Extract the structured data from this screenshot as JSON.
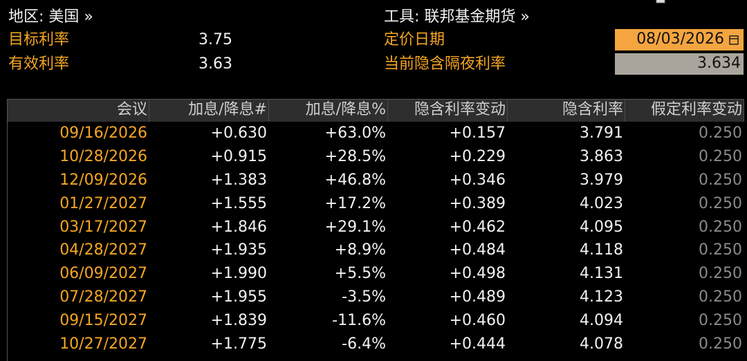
{
  "header": {
    "region": "地区: 美国 »",
    "instrument": "工具: 联邦基金期货 »",
    "target_rate_label": "目标利率",
    "target_rate": "3.75",
    "effective_rate_label": "有效利率",
    "effective_rate": "3.63",
    "pricing_date_label": "定价日期",
    "pricing_date": "08/03/2026",
    "implied_overnight_label": "当前隐含隔夜利率",
    "implied_overnight": "3.634"
  },
  "table": {
    "columns": [
      "会议",
      "加息/降息#",
      "加息/降息%",
      "隐含利率变动",
      "隐含利率",
      "假定利率变动"
    ],
    "rows": [
      [
        "09/16/2026",
        "+0.630",
        "+63.0%",
        "+0.157",
        "3.791",
        "0.250"
      ],
      [
        "10/28/2026",
        "+0.915",
        "+28.5%",
        "+0.229",
        "3.863",
        "0.250"
      ],
      [
        "12/09/2026",
        "+1.383",
        "+46.8%",
        "+0.346",
        "3.979",
        "0.250"
      ],
      [
        "01/27/2027",
        "+1.555",
        "+17.2%",
        "+0.389",
        "4.023",
        "0.250"
      ],
      [
        "03/17/2027",
        "+1.846",
        "+29.1%",
        "+0.462",
        "4.095",
        "0.250"
      ],
      [
        "04/28/2027",
        "+1.935",
        "+8.9%",
        "+0.484",
        "4.118",
        "0.250"
      ],
      [
        "06/09/2027",
        "+1.990",
        "+5.5%",
        "+0.498",
        "4.131",
        "0.250"
      ],
      [
        "07/28/2027",
        "+1.955",
        "-3.5%",
        "+0.489",
        "4.123",
        "0.250"
      ],
      [
        "09/15/2027",
        "+1.839",
        "-11.6%",
        "+0.460",
        "4.094",
        "0.250"
      ],
      [
        "10/27/2027",
        "+1.775",
        "-6.4%",
        "+0.444",
        "4.078",
        "0.250"
      ]
    ]
  }
}
